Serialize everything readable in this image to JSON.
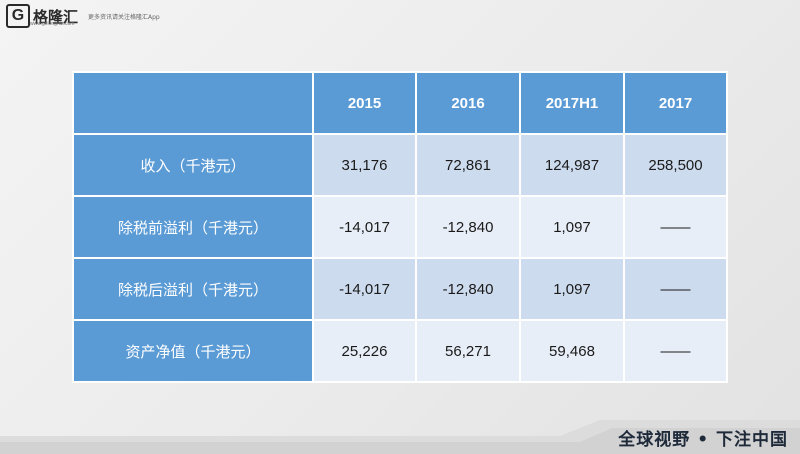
{
  "header": {
    "logo_mark": "G",
    "logo_text": "格隆汇",
    "logo_url": "www.gelonghui.com",
    "tagline": "更多资讯请关注格隆汇App"
  },
  "table": {
    "columns": [
      "",
      "2015",
      "2016",
      "2017H1",
      "2017"
    ],
    "rows": [
      {
        "label": "收入（千港元）",
        "values": [
          "31,176",
          "72,861",
          "124,987",
          "258,500"
        ]
      },
      {
        "label": "除税前溢利（千港元）",
        "values": [
          "-14,017",
          "-12,840",
          "1,097",
          "——"
        ]
      },
      {
        "label": "除税后溢利（千港元）",
        "values": [
          "-14,017",
          "-12,840",
          "1,097",
          "——"
        ]
      },
      {
        "label": "资产净值（千港元）",
        "values": [
          "25,226",
          "56,271",
          "59,468",
          "——"
        ]
      }
    ]
  },
  "footer": {
    "slogan": "全球视野 • 下注中国"
  }
}
